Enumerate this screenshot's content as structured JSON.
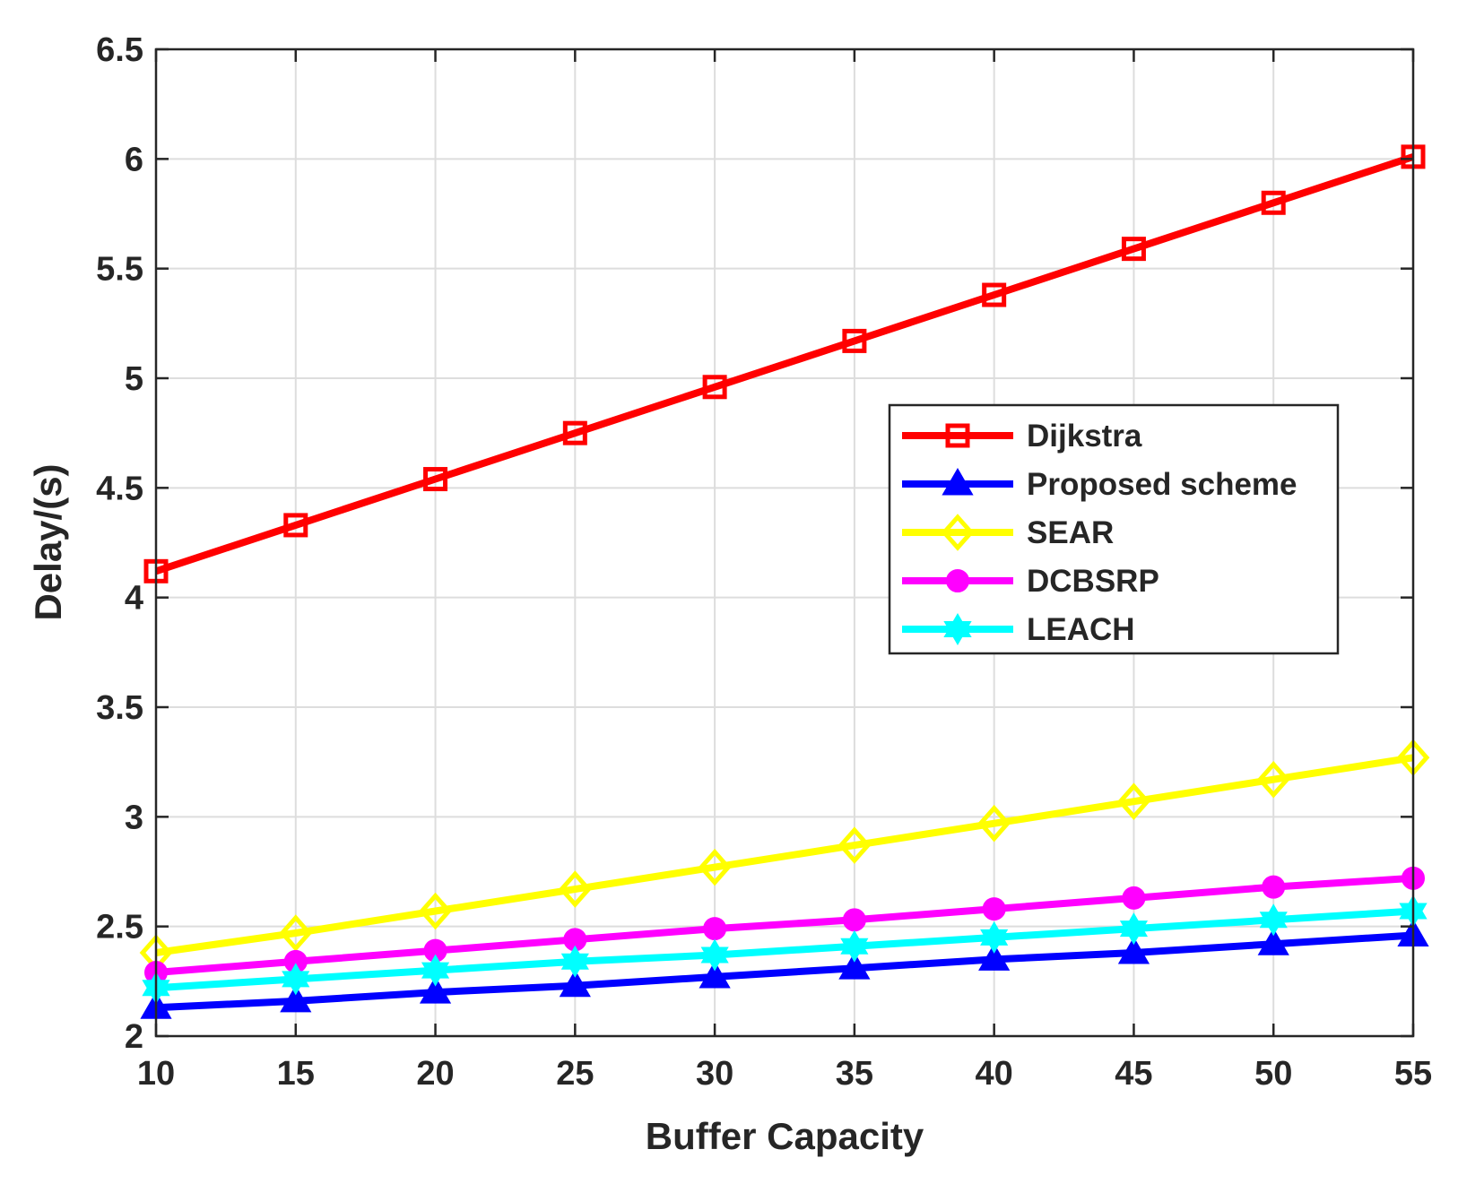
{
  "chart_data": {
    "type": "line",
    "title": "",
    "xlabel": "Buffer Capacity",
    "ylabel": "Delay/(s)",
    "xlim": [
      10,
      55
    ],
    "ylim": [
      2,
      6.5
    ],
    "grid": true,
    "legend_position": "right",
    "x": [
      10,
      15,
      20,
      25,
      30,
      35,
      40,
      45,
      50,
      55
    ],
    "x_ticks": [
      10,
      15,
      20,
      25,
      30,
      35,
      40,
      45,
      50,
      55
    ],
    "x_tick_labels": [
      "10",
      "15",
      "20",
      "25",
      "30",
      "35",
      "40",
      "45",
      "50",
      "55"
    ],
    "y_ticks": [
      2,
      2.5,
      3,
      3.5,
      4,
      4.5,
      5,
      5.5,
      6,
      6.5
    ],
    "y_tick_labels": [
      "2",
      "2.5",
      "3",
      "3.5",
      "4",
      "4.5",
      "5",
      "5.5",
      "6",
      "6.5"
    ],
    "series": [
      {
        "name": "Dijkstra",
        "color": "#ff0000",
        "marker": "square",
        "values": [
          4.12,
          4.33,
          4.54,
          4.75,
          4.96,
          5.17,
          5.38,
          5.59,
          5.8,
          6.01
        ]
      },
      {
        "name": "Proposed scheme",
        "color": "#0000ff",
        "marker": "triangle",
        "values": [
          2.13,
          2.16,
          2.2,
          2.23,
          2.27,
          2.31,
          2.35,
          2.38,
          2.42,
          2.46
        ]
      },
      {
        "name": "SEAR",
        "color": "#ffff00",
        "marker": "diamond",
        "values": [
          2.38,
          2.47,
          2.57,
          2.67,
          2.77,
          2.87,
          2.97,
          3.07,
          3.17,
          3.27
        ]
      },
      {
        "name": "DCBSRP",
        "color": "#ff00ff",
        "marker": "circle",
        "values": [
          2.29,
          2.34,
          2.39,
          2.44,
          2.49,
          2.53,
          2.58,
          2.63,
          2.68,
          2.72
        ]
      },
      {
        "name": "LEACH",
        "color": "#00ffff",
        "marker": "hexagram",
        "values": [
          2.22,
          2.26,
          2.3,
          2.34,
          2.37,
          2.41,
          2.45,
          2.49,
          2.53,
          2.57
        ]
      }
    ]
  }
}
